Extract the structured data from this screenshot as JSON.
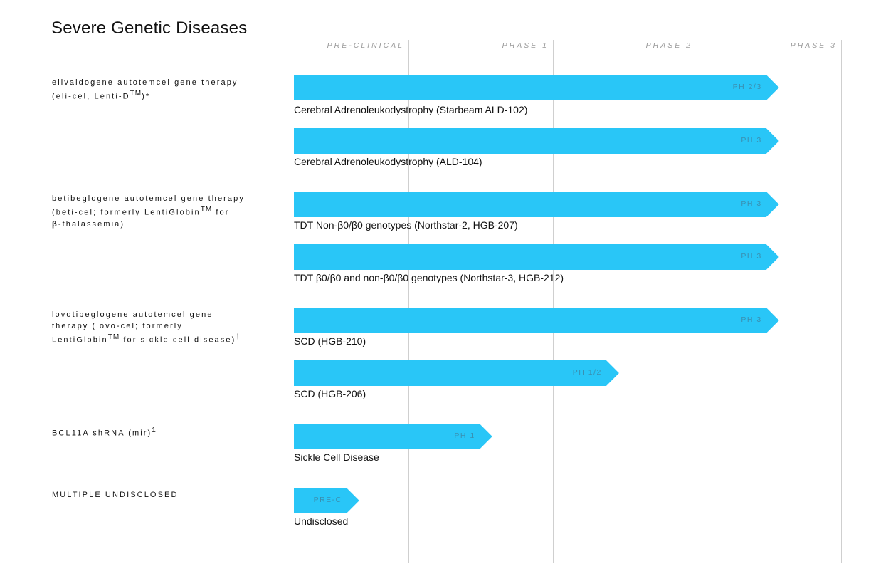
{
  "chart_data": {
    "type": "bar",
    "title": "Severe Genetic Diseases",
    "phases": [
      "PRE-CLINICAL",
      "PHASE 1",
      "PHASE 2",
      "PHASE 3"
    ],
    "accent_color": "#29c6f7",
    "groups": [
      {
        "drug": [
          "elivaldogene autotemcel gene therapy",
          "(eli-cel, Lenti-D",
          "TM",
          ")*"
        ],
        "programs": [
          {
            "indication": "Cerebral Adrenoleukodystrophy (Starbeam ALD-102)",
            "stage_label": "PH 2/3",
            "progress": 3.57
          },
          {
            "indication": "Cerebral Adrenoleukodystrophy (ALD-104)",
            "stage_label": "PH 3",
            "progress": 3.57
          }
        ]
      },
      {
        "drug": [
          "betibeglogene autotemcel gene therapy",
          "(beti-cel; formerly LentiGlobin",
          "TM",
          " for",
          "β",
          "-thalassemia)"
        ],
        "programs": [
          {
            "indication": "TDT Non-β0/β0 genotypes (Northstar-2, HGB-207)",
            "stage_label": "PH 3",
            "progress": 3.57
          },
          {
            "indication": "TDT β0/β0 and non-β0/β0 genotypes (Northstar-3, HGB-212)",
            "stage_label": "PH 3",
            "progress": 3.57
          }
        ]
      },
      {
        "drug": [
          "lovotibeglogene autotemcel gene",
          "therapy (lovo-cel; formerly",
          "LentiGlobin",
          "TM",
          " for sickle cell disease)",
          "†"
        ],
        "programs": [
          {
            "indication": "SCD (HGB-210)",
            "stage_label": "PH 3",
            "progress": 3.57
          },
          {
            "indication": "SCD (HGB-206)",
            "stage_label": "PH 1/2",
            "progress": 2.46
          }
        ]
      },
      {
        "drug": [
          "BCL11A shRNA (mir)",
          "1"
        ],
        "programs": [
          {
            "indication": "Sickle Cell Disease",
            "stage_label": "PH 1",
            "progress": 1.58
          }
        ]
      },
      {
        "drug": [
          "MULTIPLE UNDISCLOSED"
        ],
        "programs": [
          {
            "indication": "Undisclosed",
            "stage_label": "PRE-C",
            "progress": 0.57
          }
        ]
      }
    ]
  }
}
